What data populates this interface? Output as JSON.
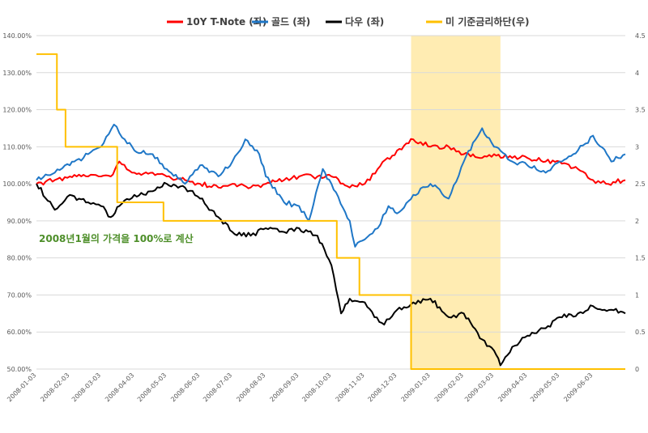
{
  "chart_data": {
    "type": "line",
    "left_axis": {
      "min": 0.5,
      "max": 1.4,
      "step": 0.1,
      "ticks": [
        "50.00%",
        "60.00%",
        "70.00%",
        "80.00%",
        "90.00%",
        "100.00%",
        "110.00%",
        "120.00%",
        "130.00%",
        "140.00%"
      ]
    },
    "right_axis": {
      "min": 0,
      "max": 4.5,
      "step": 0.5,
      "ticks": [
        "0",
        "0.5",
        "1",
        "1.5",
        "2",
        "2.5",
        "3",
        "3.5",
        "4",
        "4.5"
      ]
    },
    "x_axis": {
      "labels": [
        "2008-01-03",
        "2008-02-03",
        "2008-03-03",
        "2008-04-03",
        "2008-05-03",
        "2008-06-03",
        "2008-07-03",
        "2008-08-03",
        "2008-09-03",
        "2008-10-03",
        "2008-11-03",
        "2008-12-03",
        "2009-01-03",
        "2009-02-03",
        "2009-03-03",
        "2009-04-03",
        "2009-05-03",
        "2009-06-03"
      ],
      "start": "2008-01-03",
      "end": "2009-07-03"
    },
    "grid": true,
    "legend_position": "top",
    "highlight": {
      "from": "2008-12-16",
      "to": "2009-03-09",
      "color": "#ffd966"
    },
    "annotation": "2008년1월의 가격을 100%로 계산",
    "series": [
      {
        "name": "10Y T-Note (좌)",
        "axis": "left",
        "color": "#ff0000",
        "points": [
          [
            "2008-01-03",
            1.0
          ],
          [
            "2008-01-20",
            1.01
          ],
          [
            "2008-02-03",
            1.02
          ],
          [
            "2008-02-20",
            1.02
          ],
          [
            "2008-03-03",
            1.02
          ],
          [
            "2008-03-12",
            1.02
          ],
          [
            "2008-03-20",
            1.06
          ],
          [
            "2008-04-03",
            1.03
          ],
          [
            "2008-04-20",
            1.03
          ],
          [
            "2008-05-03",
            1.02
          ],
          [
            "2008-05-20",
            1.01
          ],
          [
            "2008-06-03",
            1.0
          ],
          [
            "2008-06-20",
            0.99
          ],
          [
            "2008-07-03",
            1.0
          ],
          [
            "2008-07-20",
            0.99
          ],
          [
            "2008-08-03",
            1.0
          ],
          [
            "2008-08-20",
            1.01
          ],
          [
            "2008-09-03",
            1.02
          ],
          [
            "2008-09-20",
            1.02
          ],
          [
            "2008-10-03",
            1.02
          ],
          [
            "2008-10-20",
            0.99
          ],
          [
            "2008-11-03",
            1.0
          ],
          [
            "2008-11-15",
            1.04
          ],
          [
            "2008-12-03",
            1.09
          ],
          [
            "2008-12-18",
            1.12
          ],
          [
            "2009-01-03",
            1.1
          ],
          [
            "2009-01-20",
            1.1
          ],
          [
            "2009-02-03",
            1.08
          ],
          [
            "2009-02-20",
            1.07
          ],
          [
            "2009-03-03",
            1.08
          ],
          [
            "2009-03-20",
            1.07
          ],
          [
            "2009-04-03",
            1.07
          ],
          [
            "2009-04-20",
            1.06
          ],
          [
            "2009-05-03",
            1.06
          ],
          [
            "2009-05-20",
            1.04
          ],
          [
            "2009-06-03",
            1.01
          ],
          [
            "2009-06-15",
            1.0
          ],
          [
            "2009-07-03",
            1.01
          ]
        ]
      },
      {
        "name": "골드 (좌)",
        "axis": "left",
        "color": "#1f77c7",
        "points": [
          [
            "2008-01-03",
            1.01
          ],
          [
            "2008-01-20",
            1.03
          ],
          [
            "2008-02-03",
            1.05
          ],
          [
            "2008-02-20",
            1.08
          ],
          [
            "2008-03-03",
            1.1
          ],
          [
            "2008-03-15",
            1.16
          ],
          [
            "2008-03-25",
            1.12
          ],
          [
            "2008-04-03",
            1.09
          ],
          [
            "2008-04-20",
            1.08
          ],
          [
            "2008-05-03",
            1.04
          ],
          [
            "2008-05-20",
            1.0
          ],
          [
            "2008-06-03",
            1.05
          ],
          [
            "2008-06-20",
            1.02
          ],
          [
            "2008-07-03",
            1.06
          ],
          [
            "2008-07-15",
            1.12
          ],
          [
            "2008-07-28",
            1.08
          ],
          [
            "2008-08-03",
            1.02
          ],
          [
            "2008-08-20",
            0.95
          ],
          [
            "2008-09-03",
            0.94
          ],
          [
            "2008-09-12",
            0.9
          ],
          [
            "2008-09-25",
            1.04
          ],
          [
            "2008-10-03",
            1.0
          ],
          [
            "2008-10-20",
            0.9
          ],
          [
            "2008-10-25",
            0.83
          ],
          [
            "2008-11-03",
            0.85
          ],
          [
            "2008-11-15",
            0.88
          ],
          [
            "2008-11-25",
            0.94
          ],
          [
            "2008-12-03",
            0.92
          ],
          [
            "2008-12-18",
            0.97
          ],
          [
            "2009-01-03",
            1.0
          ],
          [
            "2009-01-20",
            0.96
          ],
          [
            "2009-02-03",
            1.06
          ],
          [
            "2009-02-20",
            1.15
          ],
          [
            "2009-03-03",
            1.1
          ],
          [
            "2009-03-20",
            1.06
          ],
          [
            "2009-04-03",
            1.05
          ],
          [
            "2009-04-20",
            1.03
          ],
          [
            "2009-05-03",
            1.06
          ],
          [
            "2009-05-20",
            1.09
          ],
          [
            "2009-06-03",
            1.13
          ],
          [
            "2009-06-20",
            1.06
          ],
          [
            "2009-07-03",
            1.08
          ]
        ]
      },
      {
        "name": "다우 (좌)",
        "axis": "left",
        "color": "#000000",
        "points": [
          [
            "2008-01-03",
            1.0
          ],
          [
            "2008-01-20",
            0.93
          ],
          [
            "2008-02-03",
            0.97
          ],
          [
            "2008-02-20",
            0.95
          ],
          [
            "2008-03-03",
            0.94
          ],
          [
            "2008-03-12",
            0.91
          ],
          [
            "2008-03-20",
            0.94
          ],
          [
            "2008-04-03",
            0.97
          ],
          [
            "2008-04-20",
            0.98
          ],
          [
            "2008-05-03",
            1.0
          ],
          [
            "2008-05-20",
            0.99
          ],
          [
            "2008-06-03",
            0.96
          ],
          [
            "2008-06-20",
            0.91
          ],
          [
            "2008-07-03",
            0.87
          ],
          [
            "2008-07-20",
            0.86
          ],
          [
            "2008-08-03",
            0.88
          ],
          [
            "2008-08-20",
            0.87
          ],
          [
            "2008-09-03",
            0.88
          ],
          [
            "2008-09-20",
            0.86
          ],
          [
            "2008-10-03",
            0.78
          ],
          [
            "2008-10-12",
            0.65
          ],
          [
            "2008-10-20",
            0.69
          ],
          [
            "2008-11-03",
            0.68
          ],
          [
            "2008-11-12",
            0.64
          ],
          [
            "2008-11-21",
            0.62
          ],
          [
            "2008-12-03",
            0.66
          ],
          [
            "2008-12-18",
            0.68
          ],
          [
            "2009-01-03",
            0.69
          ],
          [
            "2009-01-20",
            0.64
          ],
          [
            "2009-02-03",
            0.65
          ],
          [
            "2009-02-20",
            0.58
          ],
          [
            "2009-03-03",
            0.55
          ],
          [
            "2009-03-09",
            0.51
          ],
          [
            "2009-03-20",
            0.56
          ],
          [
            "2009-04-03",
            0.59
          ],
          [
            "2009-04-20",
            0.61
          ],
          [
            "2009-05-03",
            0.64
          ],
          [
            "2009-05-20",
            0.65
          ],
          [
            "2009-06-03",
            0.67
          ],
          [
            "2009-06-20",
            0.66
          ],
          [
            "2009-07-03",
            0.65
          ]
        ]
      },
      {
        "name": "미 기준금리하단(우)",
        "axis": "right",
        "color": "#ffc000",
        "step": true,
        "points": [
          [
            "2008-01-03",
            4.25
          ],
          [
            "2008-01-22",
            3.5
          ],
          [
            "2008-01-30",
            3.0
          ],
          [
            "2008-03-18",
            2.25
          ],
          [
            "2008-04-30",
            2.0
          ],
          [
            "2008-10-08",
            1.5
          ],
          [
            "2008-10-29",
            1.0
          ],
          [
            "2008-12-16",
            0
          ],
          [
            "2009-07-03",
            0
          ]
        ]
      }
    ]
  }
}
